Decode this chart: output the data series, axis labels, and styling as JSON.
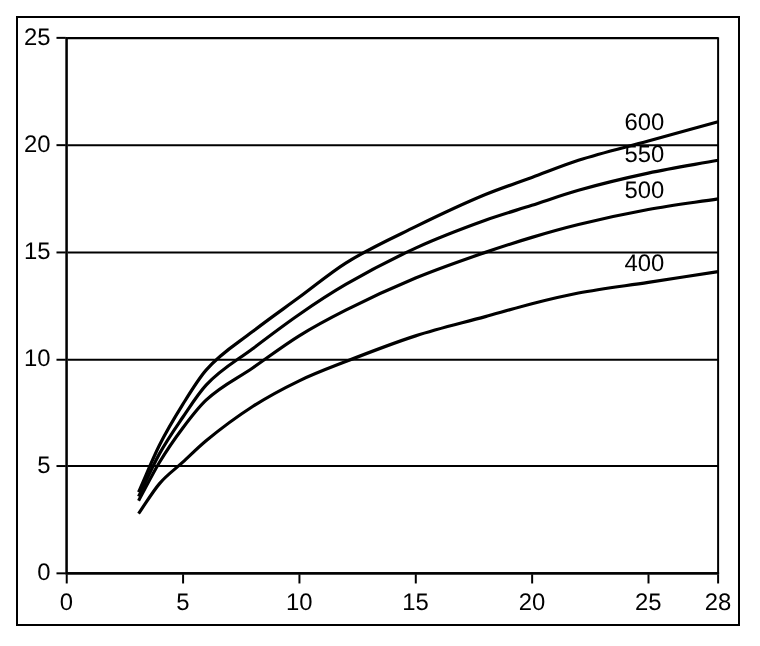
{
  "chart_data": {
    "type": "line",
    "x": [
      3.1,
      4,
      5,
      6,
      8,
      10,
      12,
      15,
      18,
      20,
      22,
      25,
      28
    ],
    "series": [
      {
        "name": "600",
        "color": "#000000",
        "values": [
          3.8,
          6.0,
          7.9,
          9.5,
          11.3,
          12.9,
          14.5,
          16.2,
          17.7,
          18.5,
          19.3,
          20.2,
          21.1
        ]
      },
      {
        "name": "550",
        "color": "#000000",
        "values": [
          3.6,
          5.6,
          7.3,
          8.8,
          10.5,
          12.1,
          13.5,
          15.2,
          16.5,
          17.2,
          17.9,
          18.7,
          19.3
        ]
      },
      {
        "name": "500",
        "color": "#000000",
        "values": [
          3.4,
          5.2,
          6.8,
          8.1,
          9.6,
          11.1,
          12.3,
          13.8,
          15.0,
          15.7,
          16.3,
          17.0,
          17.5
        ]
      },
      {
        "name": "400",
        "color": "#000000",
        "values": [
          2.8,
          4.2,
          5.2,
          6.2,
          7.8,
          9.0,
          9.9,
          11.1,
          12.0,
          12.6,
          13.1,
          13.6,
          14.1
        ]
      }
    ],
    "xlim": [
      0,
      28
    ],
    "xticks": [
      0,
      5,
      10,
      15,
      20,
      25,
      28
    ],
    "ylim": [
      0,
      25
    ],
    "yticks": [
      0,
      5,
      10,
      15,
      20,
      25
    ],
    "grid": "y",
    "legend": false,
    "marker": "none",
    "line_style": "solid"
  }
}
